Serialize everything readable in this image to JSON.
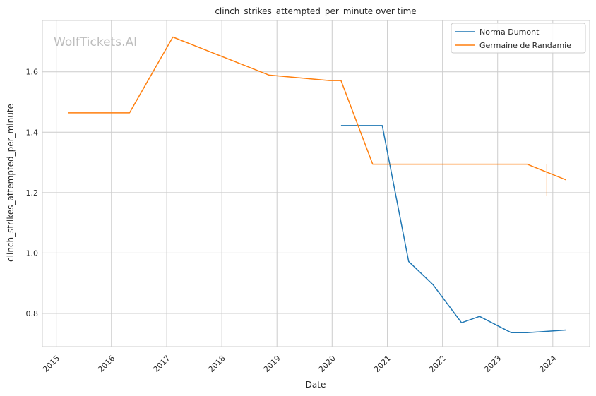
{
  "watermark": "WolfTickets.AI",
  "chart_data": {
    "type": "line",
    "title": "clinch_strikes_attempted_per_minute over time",
    "xlabel": "Date",
    "ylabel": "clinch_strikes_attempted_per_minute",
    "xlim": [
      "2014-10-01",
      "2024-09-01"
    ],
    "ylim": [
      0.69,
      1.77
    ],
    "x_ticks": [
      "2015",
      "2016",
      "2017",
      "2018",
      "2019",
      "2020",
      "2021",
      "2022",
      "2023",
      "2024"
    ],
    "y_ticks": [
      "0.8",
      "1.0",
      "1.2",
      "1.4",
      "1.6"
    ],
    "grid": true,
    "legend": "top-right",
    "series": [
      {
        "name": "Norma Dumont",
        "color": "#1f77b4",
        "points": [
          [
            "2020-02-29",
            1.422
          ],
          [
            "2020-11-28",
            1.422
          ],
          [
            "2021-05-22",
            0.972
          ],
          [
            "2021-10-30",
            0.895
          ],
          [
            "2022-05-07",
            0.769
          ],
          [
            "2022-09-03",
            0.79
          ],
          [
            "2023-04-01",
            0.736
          ],
          [
            "2023-07-15",
            0.736
          ],
          [
            "2024-03-30",
            0.745
          ]
        ]
      },
      {
        "name": "Germaine de Randamie",
        "color": "#ff7f0e",
        "points": [
          [
            "2015-03-21",
            1.464
          ],
          [
            "2016-04-30",
            1.464
          ],
          [
            "2017-02-11",
            1.715
          ],
          [
            "2018-11-10",
            1.589
          ],
          [
            "2019-12-14",
            1.571
          ],
          [
            "2020-02-29",
            1.571
          ],
          [
            "2020-09-26",
            1.294
          ],
          [
            "2023-07-15",
            1.294
          ],
          [
            "2024-03-30",
            1.242
          ]
        ]
      }
    ]
  }
}
